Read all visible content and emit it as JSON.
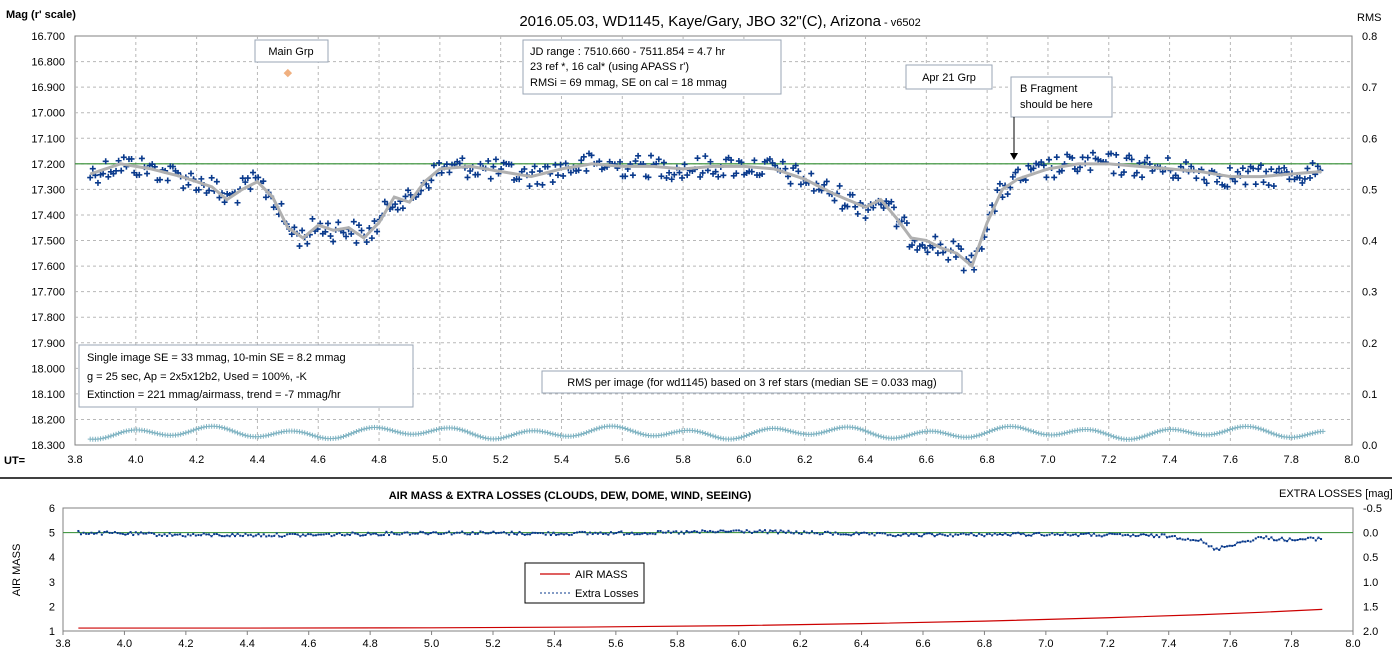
{
  "top_chart": {
    "title_main": "2016.05.03,  WD1145, Kaye/Gary, JBO 32\"(C), Arizona",
    "title_version": " - v6502",
    "ylabel_left": "Mag (r' scale)",
    "ylabel_right": "RMS",
    "xlabel": "UT=",
    "y_ticks": [
      "16.700",
      "16.800",
      "16.900",
      "17.000",
      "17.100",
      "17.200",
      "17.300",
      "17.400",
      "17.500",
      "17.600",
      "17.700",
      "17.800",
      "17.900",
      "18.000",
      "18.100",
      "18.200",
      "18.300"
    ],
    "rms_ticks": [
      "0.8",
      "0.7",
      "0.6",
      "0.5",
      "0.4",
      "0.3",
      "0.2",
      "0.1",
      "0.0"
    ],
    "x_ticks": [
      "3.8",
      "4.0",
      "4.2",
      "4.4",
      "4.6",
      "4.8",
      "5.0",
      "5.2",
      "5.4",
      "5.6",
      "5.8",
      "6.0",
      "6.2",
      "6.4",
      "6.6",
      "6.8",
      "7.0",
      "7.2",
      "7.4",
      "7.6",
      "7.8",
      "8.0"
    ],
    "annotations": {
      "main_grp": "Main Grp",
      "apr21_grp": "Apr 21 Grp",
      "b_fragment_line1": "B Fragment",
      "b_fragment_line2": "should be here",
      "jd_line1": "JD range  : 7510.660 - 7511.854  = 4.7 hr",
      "jd_line2": "  23 ref *, 16 cal* (using APASS r')",
      "jd_line3": "RMSi = 69 mmag, SE on cal = 18 mmag",
      "se_line1": "Single image SE = 33 mmag, 10-min  SE = 8.2 mmag",
      "se_line2": "g = 25 sec, Ap = 2x5x12b2, Used = 100%, -K",
      "se_line3": "Extinction = 221 mmag/airmass, trend = -7 mmag/hr",
      "rms_note": "RMS per image (for wd1145) based on 3 ref stars (median SE = 0.033 mag)"
    }
  },
  "bottom_chart": {
    "title": "AIR MASS & EXTRA LOSSES (CLOUDS, DEW, DOME, WIND, SEEING)",
    "ylabel_left": "AIR MASS",
    "ylabel_right": "EXTRA LOSSES [mag]",
    "y_left_ticks": [
      "6",
      "5",
      "4",
      "3",
      "2",
      "1"
    ],
    "y_right_ticks": [
      "-0.5",
      "0.0",
      "0.5",
      "1.0",
      "1.5",
      "2.0"
    ],
    "x_ticks": [
      "3.8",
      "4.0",
      "4.2",
      "4.4",
      "4.6",
      "4.8",
      "5.0",
      "5.2",
      "5.4",
      "5.6",
      "5.8",
      "6.0",
      "6.2",
      "6.4",
      "6.6",
      "6.8",
      "7.0",
      "7.2",
      "7.4",
      "7.6",
      "7.8",
      "8.0"
    ],
    "legend_airmass": "AIR MASS",
    "legend_losses": "Extra Losses"
  },
  "colors": {
    "data_points": "#0a3a8c",
    "smooth_curve": "#b0b0b0",
    "reference_line": "#2e8b2e",
    "rms_points": "#7fb3c2",
    "main_grp_marker": "#f0b080",
    "airmass_line": "#cc0000",
    "losses_line": "#0a3a8c"
  },
  "chart_data": [
    {
      "type": "scatter",
      "title": "2016.05.03,  WD1145, Kaye/Gary, JBO 32\"(C), Arizona - v6502",
      "xlabel": "UT=",
      "ylabel": "Mag (r' scale)",
      "y2label": "RMS",
      "xlim": [
        3.8,
        8.0
      ],
      "ylim": [
        18.3,
        16.7
      ],
      "y2lim": [
        0.0,
        0.8
      ],
      "grid": true,
      "reference_mag": 17.2,
      "smooth_curve": {
        "x": [
          3.85,
          3.95,
          4.05,
          4.15,
          4.25,
          4.3,
          4.35,
          4.4,
          4.45,
          4.5,
          4.55,
          4.6,
          4.65,
          4.7,
          4.75,
          4.8,
          4.85,
          4.9,
          4.95,
          5.0,
          5.1,
          5.2,
          5.3,
          5.4,
          5.5,
          5.6,
          5.7,
          5.8,
          5.9,
          6.0,
          6.1,
          6.2,
          6.3,
          6.4,
          6.45,
          6.5,
          6.55,
          6.6,
          6.65,
          6.7,
          6.75,
          6.8,
          6.85,
          6.9,
          7.0,
          7.1,
          7.2,
          7.3,
          7.4,
          7.5,
          7.6,
          7.7,
          7.8,
          7.9
        ],
        "y": [
          17.24,
          17.2,
          17.22,
          17.25,
          17.29,
          17.34,
          17.3,
          17.27,
          17.33,
          17.45,
          17.49,
          17.44,
          17.46,
          17.45,
          17.49,
          17.43,
          17.33,
          17.35,
          17.27,
          17.22,
          17.21,
          17.23,
          17.25,
          17.22,
          17.2,
          17.21,
          17.21,
          17.22,
          17.21,
          17.21,
          17.22,
          17.26,
          17.32,
          17.37,
          17.34,
          17.41,
          17.49,
          17.5,
          17.53,
          17.55,
          17.6,
          17.43,
          17.3,
          17.26,
          17.22,
          17.2,
          17.2,
          17.21,
          17.22,
          17.23,
          17.25,
          17.25,
          17.24,
          17.23
        ]
      },
      "rms_per_image": {
        "x_range": [
          3.85,
          7.91
        ],
        "y_range": [
          0.01,
          0.045
        ]
      },
      "annotations": {
        "main_grp_marker": [
          4.5,
          16.845
        ]
      }
    },
    {
      "type": "line",
      "title": "AIR MASS & EXTRA LOSSES (CLOUDS, DEW, DOME, WIND, SEEING)",
      "ylabel": "AIR MASS",
      "y2label": "EXTRA LOSSES [mag]",
      "xlim": [
        3.8,
        8.0
      ],
      "ylim": [
        1,
        6
      ],
      "y2lim": [
        2.0,
        -0.5
      ],
      "grid": false,
      "series": [
        {
          "name": "AIR MASS",
          "x": [
            3.85,
            4.4,
            5.0,
            5.5,
            6.0,
            6.4,
            6.8,
            7.2,
            7.5,
            7.7,
            7.9
          ],
          "y": [
            1.12,
            1.12,
            1.13,
            1.16,
            1.22,
            1.3,
            1.4,
            1.54,
            1.66,
            1.76,
            1.88
          ]
        },
        {
          "name": "Extra Losses",
          "x": [
            3.85,
            4.2,
            4.6,
            5.0,
            5.4,
            5.8,
            6.0,
            6.2,
            6.5,
            6.8,
            7.0,
            7.2,
            7.4,
            7.5,
            7.55,
            7.6,
            7.7,
            7.8,
            7.9
          ],
          "y": [
            0.0,
            0.05,
            0.05,
            0.0,
            0.02,
            0.0,
            -0.03,
            0.0,
            0.05,
            0.04,
            0.03,
            0.05,
            0.07,
            0.15,
            0.35,
            0.25,
            0.1,
            0.15,
            0.12
          ]
        }
      ],
      "legend": "center-left"
    }
  ]
}
